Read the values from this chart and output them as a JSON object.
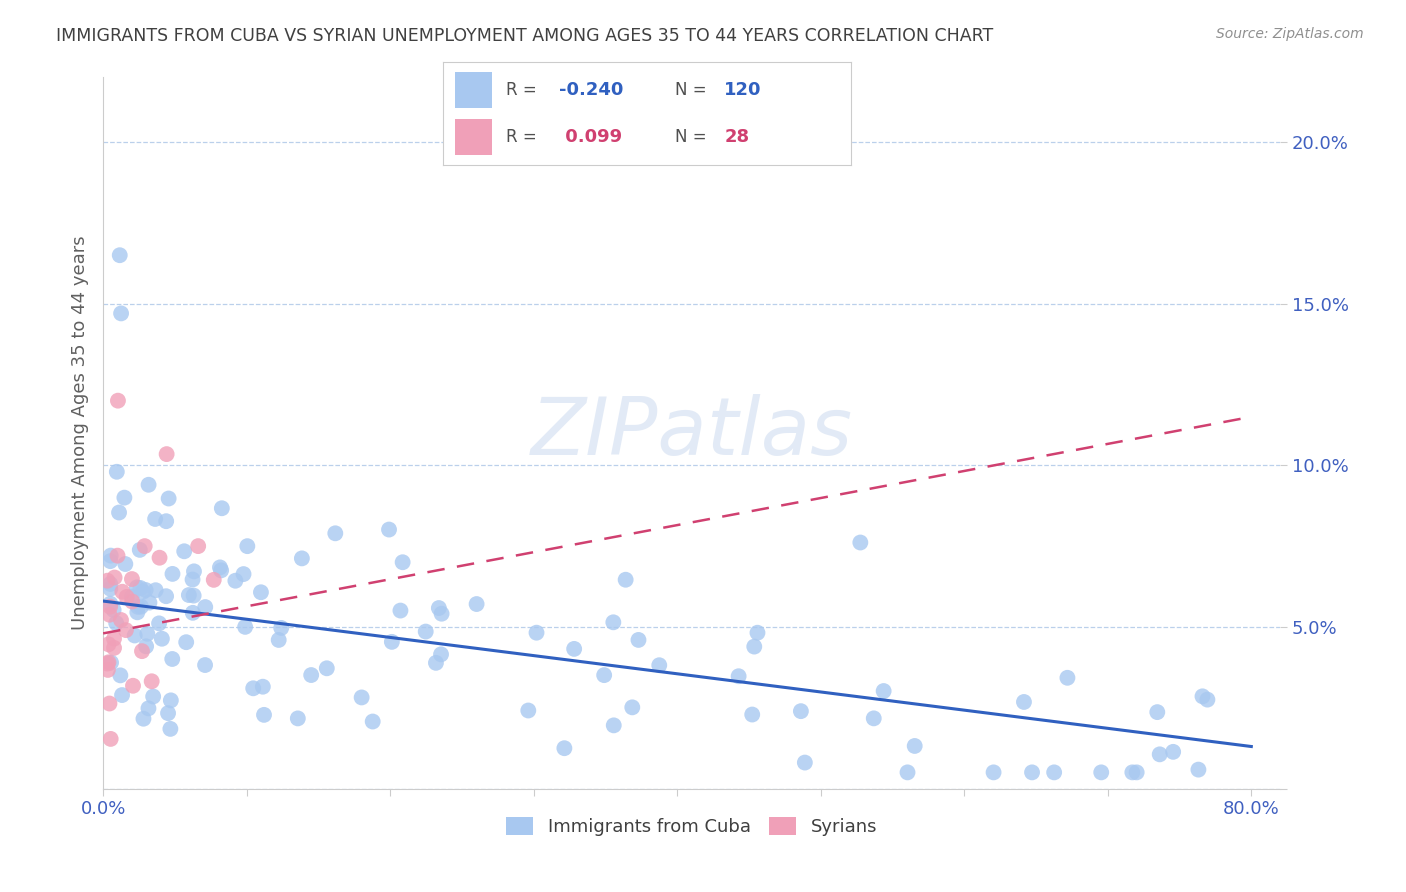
{
  "title": "IMMIGRANTS FROM CUBA VS SYRIAN UNEMPLOYMENT AMONG AGES 35 TO 44 YEARS CORRELATION CHART",
  "source": "Source: ZipAtlas.com",
  "ylabel": "Unemployment Among Ages 35 to 44 years",
  "xlim": [
    0.0,
    0.82
  ],
  "ylim": [
    0.0,
    0.22
  ],
  "yticks": [
    0.0,
    0.05,
    0.1,
    0.15,
    0.2
  ],
  "yticklabels": [
    "",
    "5.0%",
    "10.0%",
    "15.0%",
    "20.0%"
  ],
  "cuba_R": -0.24,
  "cuba_N": 120,
  "syria_R": 0.099,
  "syria_N": 28,
  "legend_labels": [
    "Immigrants from Cuba",
    "Syrians"
  ],
  "cuba_color": "#a8c8f0",
  "syria_color": "#f0a0b8",
  "cuba_line_color": "#3060c0",
  "syria_line_color": "#d04070",
  "background_color": "#ffffff",
  "grid_color": "#b0c8e8",
  "title_color": "#404040",
  "axis_label_color": "#4060c0",
  "watermark_color": "#d0ddf0",
  "cuba_line_start_y": 0.058,
  "cuba_line_end_y": 0.013,
  "syria_line_start_y": 0.048,
  "syria_line_end_y": 0.115,
  "cuba_scatter_seed": 77,
  "syria_scatter_seed": 42
}
